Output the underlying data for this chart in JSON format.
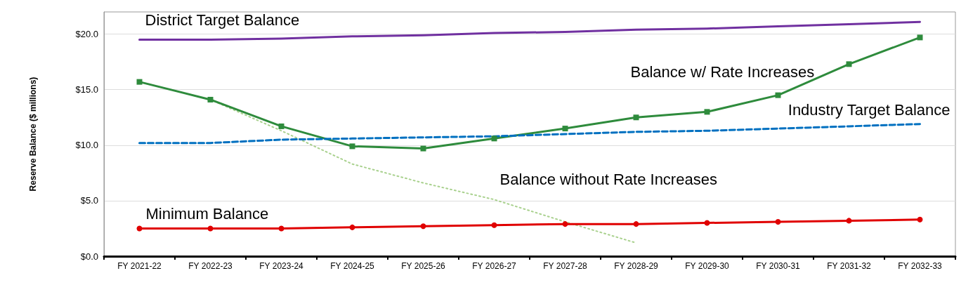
{
  "chart_data": {
    "type": "line",
    "ylabel": "Reserve Balance ($ millions)",
    "categories": [
      "FY 2021-22",
      "FY 2022-23",
      "FY 2023-24",
      "FY 2024-25",
      "FY 2025-26",
      "FY 2026-27",
      "FY 2027-28",
      "FY 2028-29",
      "FY 2029-30",
      "FY 2030-31",
      "FY 2031-32",
      "FY 2032-33"
    ],
    "series": [
      {
        "name": "District Target Balance",
        "color": "#7030a0",
        "marker": "none",
        "line_style": "solid",
        "values": [
          19.5,
          19.5,
          19.6,
          19.8,
          19.9,
          20.1,
          20.2,
          20.4,
          20.5,
          20.7,
          20.9,
          21.1
        ]
      },
      {
        "name": "Balance w/ Rate Increases",
        "color": "#2e8b3c",
        "marker": "square",
        "line_style": "solid",
        "values": [
          15.7,
          14.1,
          11.7,
          9.9,
          9.7,
          10.6,
          11.5,
          12.5,
          13.0,
          14.5,
          17.3,
          19.7
        ]
      },
      {
        "name": "Industry Target Balance",
        "color": "#0070c0",
        "marker": "none",
        "line_style": "dashed",
        "values": [
          10.2,
          10.2,
          10.5,
          10.6,
          10.7,
          10.8,
          11.0,
          11.2,
          11.3,
          11.5,
          11.7,
          11.9
        ]
      },
      {
        "name": "Balance without Rate Increases",
        "color": "#a9d18e",
        "marker": "none",
        "line_style": "dotted",
        "values": [
          null,
          14.1,
          11.3,
          8.3,
          6.6,
          5.1,
          3.1,
          1.2,
          null,
          null,
          null,
          null
        ]
      },
      {
        "name": "Minimum Balance",
        "color": "#e00000",
        "marker": "circle",
        "line_style": "solid",
        "values": [
          2.5,
          2.5,
          2.5,
          2.6,
          2.7,
          2.8,
          2.9,
          2.9,
          3.0,
          3.1,
          3.2,
          3.3
        ]
      }
    ],
    "ylim": [
      0,
      22
    ],
    "yticks": [
      {
        "value": 0,
        "label": "$0.0"
      },
      {
        "value": 5,
        "label": "$5.0"
      },
      {
        "value": 10,
        "label": "$10.0"
      },
      {
        "value": 15,
        "label": "$15.0"
      },
      {
        "value": 20,
        "label": "$20.0"
      }
    ],
    "grid": "y",
    "legend": false
  }
}
